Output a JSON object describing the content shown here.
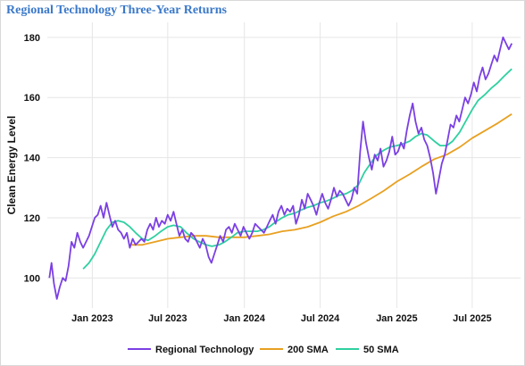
{
  "chart_data": {
    "type": "line",
    "title": "Regional Technology Three-Year Returns",
    "xlabel": "",
    "ylabel": "Clean Energy Level",
    "ylim": [
      90,
      185
    ],
    "xlim": [
      "2022-09-15",
      "2025-10-25"
    ],
    "y_ticks": [
      100,
      120,
      140,
      160,
      180
    ],
    "x_ticks": [
      {
        "date": "2023-01-01",
        "label": "Jan 2023"
      },
      {
        "date": "2023-07-01",
        "label": "Jul 2023"
      },
      {
        "date": "2024-01-01",
        "label": "Jan 2024"
      },
      {
        "date": "2024-07-01",
        "label": "Jul 2024"
      },
      {
        "date": "2025-01-01",
        "label": "Jan 2025"
      },
      {
        "date": "2025-07-01",
        "label": "Jul 2025"
      }
    ],
    "grid": true,
    "legend_position": "bottom",
    "series": [
      {
        "name": "Regional Technology",
        "color": "#7b3fe4",
        "points": [
          [
            "2022-09-20",
            100
          ],
          [
            "2022-09-25",
            105
          ],
          [
            "2022-10-01",
            98
          ],
          [
            "2022-10-08",
            93
          ],
          [
            "2022-10-15",
            97
          ],
          [
            "2022-10-22",
            100
          ],
          [
            "2022-10-29",
            99
          ],
          [
            "2022-11-05",
            104
          ],
          [
            "2022-11-12",
            112
          ],
          [
            "2022-11-19",
            110
          ],
          [
            "2022-11-26",
            115
          ],
          [
            "2022-12-03",
            112
          ],
          [
            "2022-12-10",
            110
          ],
          [
            "2022-12-17",
            112
          ],
          [
            "2022-12-24",
            114
          ],
          [
            "2022-12-31",
            117
          ],
          [
            "2023-01-07",
            120
          ],
          [
            "2023-01-14",
            121
          ],
          [
            "2023-01-21",
            124
          ],
          [
            "2023-01-28",
            120
          ],
          [
            "2023-02-04",
            125
          ],
          [
            "2023-02-11",
            121
          ],
          [
            "2023-02-18",
            117
          ],
          [
            "2023-02-25",
            119
          ],
          [
            "2023-03-04",
            116
          ],
          [
            "2023-03-11",
            115
          ],
          [
            "2023-03-18",
            113
          ],
          [
            "2023-03-25",
            115
          ],
          [
            "2023-04-01",
            110
          ],
          [
            "2023-04-08",
            113
          ],
          [
            "2023-04-15",
            111
          ],
          [
            "2023-04-22",
            112
          ],
          [
            "2023-04-29",
            113
          ],
          [
            "2023-05-06",
            112
          ],
          [
            "2023-05-13",
            116
          ],
          [
            "2023-05-20",
            118
          ],
          [
            "2023-05-27",
            116
          ],
          [
            "2023-06-03",
            120
          ],
          [
            "2023-06-10",
            117
          ],
          [
            "2023-06-17",
            119
          ],
          [
            "2023-06-24",
            118
          ],
          [
            "2023-07-01",
            121
          ],
          [
            "2023-07-08",
            119
          ],
          [
            "2023-07-15",
            122
          ],
          [
            "2023-07-22",
            118
          ],
          [
            "2023-07-29",
            114
          ],
          [
            "2023-08-05",
            116
          ],
          [
            "2023-08-12",
            113
          ],
          [
            "2023-08-19",
            112
          ],
          [
            "2023-08-26",
            115
          ],
          [
            "2023-09-02",
            114
          ],
          [
            "2023-09-09",
            112
          ],
          [
            "2023-09-16",
            110
          ],
          [
            "2023-09-23",
            113
          ],
          [
            "2023-09-30",
            111
          ],
          [
            "2023-10-07",
            107
          ],
          [
            "2023-10-14",
            105
          ],
          [
            "2023-10-21",
            108
          ],
          [
            "2023-10-28",
            111
          ],
          [
            "2023-11-04",
            114
          ],
          [
            "2023-11-11",
            112
          ],
          [
            "2023-11-18",
            116
          ],
          [
            "2023-11-25",
            117
          ],
          [
            "2023-12-02",
            115
          ],
          [
            "2023-12-09",
            118
          ],
          [
            "2023-12-16",
            116
          ],
          [
            "2023-12-23",
            114
          ],
          [
            "2023-12-30",
            117
          ],
          [
            "2024-01-06",
            115
          ],
          [
            "2024-01-13",
            113
          ],
          [
            "2024-01-20",
            115
          ],
          [
            "2024-01-27",
            118
          ],
          [
            "2024-02-03",
            117
          ],
          [
            "2024-02-10",
            116
          ],
          [
            "2024-02-17",
            115
          ],
          [
            "2024-02-24",
            117
          ],
          [
            "2024-03-02",
            119
          ],
          [
            "2024-03-09",
            121
          ],
          [
            "2024-03-16",
            118
          ],
          [
            "2024-03-23",
            122
          ],
          [
            "2024-03-30",
            124
          ],
          [
            "2024-04-06",
            121
          ],
          [
            "2024-04-13",
            123
          ],
          [
            "2024-04-20",
            122
          ],
          [
            "2024-04-27",
            124
          ],
          [
            "2024-05-04",
            118
          ],
          [
            "2024-05-11",
            121
          ],
          [
            "2024-05-18",
            126
          ],
          [
            "2024-05-25",
            123
          ],
          [
            "2024-06-01",
            128
          ],
          [
            "2024-06-08",
            126
          ],
          [
            "2024-06-15",
            124
          ],
          [
            "2024-06-22",
            121
          ],
          [
            "2024-06-29",
            125
          ],
          [
            "2024-07-06",
            128
          ],
          [
            "2024-07-13",
            125
          ],
          [
            "2024-07-20",
            123
          ],
          [
            "2024-07-27",
            126
          ],
          [
            "2024-08-03",
            130
          ],
          [
            "2024-08-10",
            127
          ],
          [
            "2024-08-17",
            129
          ],
          [
            "2024-08-24",
            128
          ],
          [
            "2024-08-31",
            126
          ],
          [
            "2024-09-07",
            124
          ],
          [
            "2024-09-14",
            126
          ],
          [
            "2024-09-21",
            130
          ],
          [
            "2024-09-28",
            128
          ],
          [
            "2024-10-05",
            142
          ],
          [
            "2024-10-12",
            152
          ],
          [
            "2024-10-19",
            145
          ],
          [
            "2024-10-26",
            140
          ],
          [
            "2024-11-02",
            136
          ],
          [
            "2024-11-09",
            141
          ],
          [
            "2024-11-16",
            139
          ],
          [
            "2024-11-23",
            143
          ],
          [
            "2024-11-30",
            137
          ],
          [
            "2024-12-07",
            139
          ],
          [
            "2024-12-14",
            142
          ],
          [
            "2024-12-21",
            147
          ],
          [
            "2024-12-28",
            141
          ],
          [
            "2025-01-04",
            142
          ],
          [
            "2025-01-11",
            145
          ],
          [
            "2025-01-18",
            143
          ],
          [
            "2025-01-25",
            149
          ],
          [
            "2025-02-01",
            154
          ],
          [
            "2025-02-08",
            158
          ],
          [
            "2025-02-15",
            152
          ],
          [
            "2025-02-22",
            148
          ],
          [
            "2025-03-01",
            150
          ],
          [
            "2025-03-08",
            146
          ],
          [
            "2025-03-15",
            144
          ],
          [
            "2025-03-22",
            140
          ],
          [
            "2025-03-29",
            135
          ],
          [
            "2025-04-05",
            128
          ],
          [
            "2025-04-12",
            133
          ],
          [
            "2025-04-19",
            138
          ],
          [
            "2025-04-26",
            141
          ],
          [
            "2025-05-03",
            146
          ],
          [
            "2025-05-10",
            151
          ],
          [
            "2025-05-17",
            150
          ],
          [
            "2025-05-24",
            154
          ],
          [
            "2025-05-31",
            152
          ],
          [
            "2025-06-07",
            156
          ],
          [
            "2025-06-14",
            160
          ],
          [
            "2025-06-21",
            158
          ],
          [
            "2025-06-28",
            161
          ],
          [
            "2025-07-05",
            165
          ],
          [
            "2025-07-12",
            162
          ],
          [
            "2025-07-19",
            167
          ],
          [
            "2025-07-26",
            170
          ],
          [
            "2025-08-02",
            166
          ],
          [
            "2025-08-09",
            168
          ],
          [
            "2025-08-16",
            171
          ],
          [
            "2025-08-23",
            174
          ],
          [
            "2025-08-30",
            172
          ],
          [
            "2025-09-06",
            176
          ],
          [
            "2025-09-13",
            180
          ],
          [
            "2025-09-20",
            178
          ],
          [
            "2025-09-27",
            176
          ],
          [
            "2025-10-04",
            178
          ]
        ]
      },
      {
        "name": "200 SMA",
        "color": "#e8a020",
        "points": [
          [
            "2023-04-01",
            111
          ],
          [
            "2023-05-01",
            111
          ],
          [
            "2023-06-01",
            112
          ],
          [
            "2023-07-01",
            113
          ],
          [
            "2023-08-01",
            113.5
          ],
          [
            "2023-09-01",
            114
          ],
          [
            "2023-10-01",
            114
          ],
          [
            "2023-11-01",
            113.5
          ],
          [
            "2023-12-01",
            113.5
          ],
          [
            "2024-01-01",
            113.5
          ],
          [
            "2024-02-01",
            114
          ],
          [
            "2024-03-01",
            114.5
          ],
          [
            "2024-04-01",
            115.5
          ],
          [
            "2024-05-01",
            116
          ],
          [
            "2024-06-01",
            117
          ],
          [
            "2024-07-01",
            118.5
          ],
          [
            "2024-08-01",
            120.5
          ],
          [
            "2024-09-01",
            122
          ],
          [
            "2024-10-01",
            124
          ],
          [
            "2024-11-01",
            126.5
          ],
          [
            "2024-12-01",
            129
          ],
          [
            "2025-01-01",
            132
          ],
          [
            "2025-02-01",
            134.5
          ],
          [
            "2025-03-01",
            137
          ],
          [
            "2025-04-01",
            139.5
          ],
          [
            "2025-05-01",
            141
          ],
          [
            "2025-06-01",
            143.5
          ],
          [
            "2025-07-01",
            146.5
          ],
          [
            "2025-08-01",
            149
          ],
          [
            "2025-09-01",
            151.5
          ],
          [
            "2025-10-04",
            154.5
          ]
        ]
      },
      {
        "name": "50 SMA",
        "color": "#2ed0a0",
        "points": [
          [
            "2022-12-10",
            103
          ],
          [
            "2022-12-24",
            105
          ],
          [
            "2023-01-07",
            108
          ],
          [
            "2023-01-21",
            112
          ],
          [
            "2023-02-04",
            116
          ],
          [
            "2023-02-18",
            118.5
          ],
          [
            "2023-03-04",
            119
          ],
          [
            "2023-03-18",
            118.5
          ],
          [
            "2023-04-01",
            117
          ],
          [
            "2023-04-15",
            115
          ],
          [
            "2023-05-01",
            113
          ],
          [
            "2023-05-15",
            112.5
          ],
          [
            "2023-06-01",
            114
          ],
          [
            "2023-06-15",
            115.5
          ],
          [
            "2023-07-01",
            117
          ],
          [
            "2023-07-15",
            117.5
          ],
          [
            "2023-08-01",
            117
          ],
          [
            "2023-08-15",
            115
          ],
          [
            "2023-09-01",
            113
          ],
          [
            "2023-09-15",
            112
          ],
          [
            "2023-10-01",
            111
          ],
          [
            "2023-10-15",
            110.5
          ],
          [
            "2023-11-01",
            111
          ],
          [
            "2023-11-15",
            112
          ],
          [
            "2023-12-01",
            113.5
          ],
          [
            "2023-12-15",
            115
          ],
          [
            "2024-01-01",
            115.5
          ],
          [
            "2024-01-15",
            115.5
          ],
          [
            "2024-02-01",
            115.5
          ],
          [
            "2024-02-15",
            116
          ],
          [
            "2024-03-01",
            117
          ],
          [
            "2024-03-15",
            118.5
          ],
          [
            "2024-04-01",
            120
          ],
          [
            "2024-04-15",
            121
          ],
          [
            "2024-05-01",
            121.5
          ],
          [
            "2024-05-15",
            122.5
          ],
          [
            "2024-06-01",
            123.5
          ],
          [
            "2024-06-15",
            124
          ],
          [
            "2024-07-01",
            125
          ],
          [
            "2024-07-15",
            125.5
          ],
          [
            "2024-08-01",
            126.5
          ],
          [
            "2024-08-15",
            127.5
          ],
          [
            "2024-09-01",
            128
          ],
          [
            "2024-09-15",
            129
          ],
          [
            "2024-10-01",
            131
          ],
          [
            "2024-10-15",
            135
          ],
          [
            "2024-11-01",
            138.5
          ],
          [
            "2024-11-15",
            141
          ],
          [
            "2024-12-01",
            142.5
          ],
          [
            "2024-12-15",
            143.5
          ],
          [
            "2025-01-01",
            144
          ],
          [
            "2025-01-15",
            144.5
          ],
          [
            "2025-02-01",
            145.5
          ],
          [
            "2025-02-15",
            147
          ],
          [
            "2025-03-01",
            148
          ],
          [
            "2025-03-15",
            147.5
          ],
          [
            "2025-04-01",
            145.5
          ],
          [
            "2025-04-15",
            144
          ],
          [
            "2025-05-01",
            144
          ],
          [
            "2025-05-15",
            145.5
          ],
          [
            "2025-06-01",
            148.5
          ],
          [
            "2025-06-15",
            152
          ],
          [
            "2025-07-01",
            156
          ],
          [
            "2025-07-15",
            159
          ],
          [
            "2025-08-01",
            161
          ],
          [
            "2025-08-15",
            163
          ],
          [
            "2025-09-01",
            165
          ],
          [
            "2025-09-15",
            167
          ],
          [
            "2025-10-04",
            169.5
          ]
        ]
      }
    ]
  }
}
